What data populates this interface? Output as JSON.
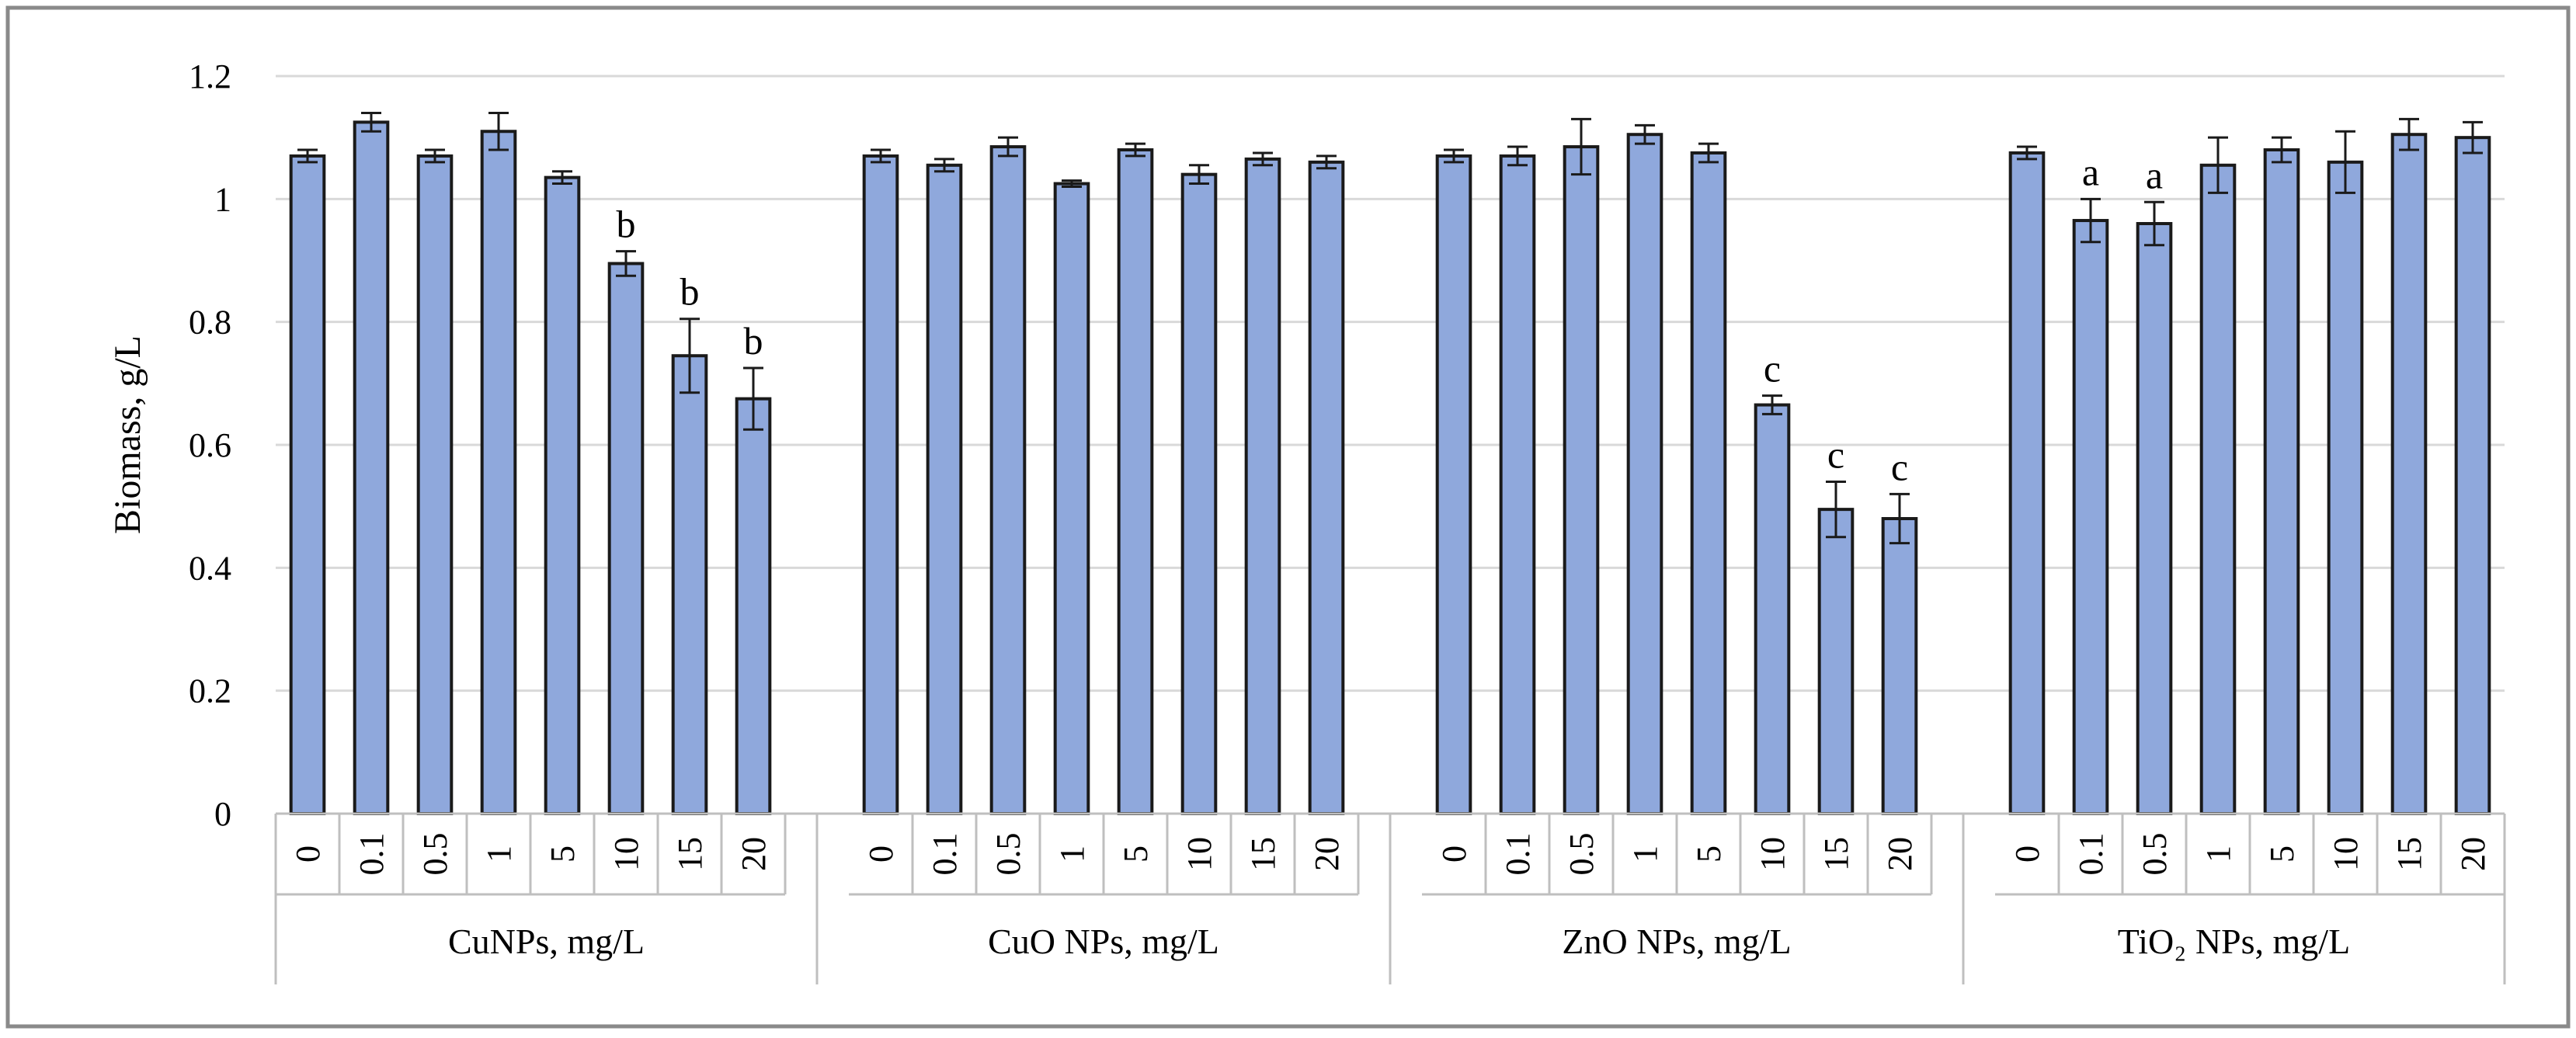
{
  "chart_data": {
    "type": "bar",
    "title": "",
    "xlabel": "",
    "ylabel": "Biomass, g/L",
    "ylim": [
      0,
      1.2
    ],
    "yticks": [
      "0",
      "0.2",
      "0.4",
      "0.6",
      "0.8",
      "1",
      "1.2"
    ],
    "grid": true,
    "bar_color": "#8FA8DC",
    "groups": [
      {
        "name": "CuNPs, mg/L",
        "categories": [
          "0",
          "0.1",
          "0.5",
          "1",
          "5",
          "10",
          "15",
          "20"
        ],
        "values": [
          1.07,
          1.125,
          1.07,
          1.11,
          1.035,
          0.895,
          0.745,
          0.675
        ],
        "errors": [
          0.01,
          0.015,
          0.01,
          0.03,
          0.01,
          0.02,
          0.06,
          0.05
        ],
        "labels": [
          "",
          "",
          "",
          "",
          "",
          "b",
          "b",
          "b"
        ]
      },
      {
        "name": "CuO NPs, mg/L",
        "categories": [
          "0",
          "0.1",
          "0.5",
          "1",
          "5",
          "10",
          "15",
          "20"
        ],
        "values": [
          1.07,
          1.055,
          1.085,
          1.025,
          1.08,
          1.04,
          1.065,
          1.06
        ],
        "errors": [
          0.01,
          0.01,
          0.015,
          0.005,
          0.01,
          0.015,
          0.01,
          0.01
        ],
        "labels": [
          "",
          "",
          "",
          "",
          "",
          "",
          "",
          ""
        ]
      },
      {
        "name": "ZnO NPs, mg/L",
        "categories": [
          "0",
          "0.1",
          "0.5",
          "1",
          "5",
          "10",
          "15",
          "20"
        ],
        "values": [
          1.07,
          1.07,
          1.085,
          1.105,
          1.075,
          0.665,
          0.495,
          0.48
        ],
        "errors": [
          0.01,
          0.015,
          0.045,
          0.015,
          0.015,
          0.015,
          0.045,
          0.04
        ],
        "labels": [
          "",
          "",
          "",
          "",
          "",
          "c",
          "c",
          "c"
        ]
      },
      {
        "name": "TiO₂ NPs, mg/L",
        "categories": [
          "0",
          "0.1",
          "0.5",
          "1",
          "5",
          "10",
          "15",
          "20"
        ],
        "values": [
          1.075,
          0.965,
          0.96,
          1.055,
          1.08,
          1.06,
          1.105,
          1.1
        ],
        "errors": [
          0.01,
          0.035,
          0.035,
          0.045,
          0.02,
          0.05,
          0.025,
          0.025
        ],
        "labels": [
          "",
          "a",
          "a",
          "",
          "",
          "",
          "",
          ""
        ]
      }
    ]
  }
}
